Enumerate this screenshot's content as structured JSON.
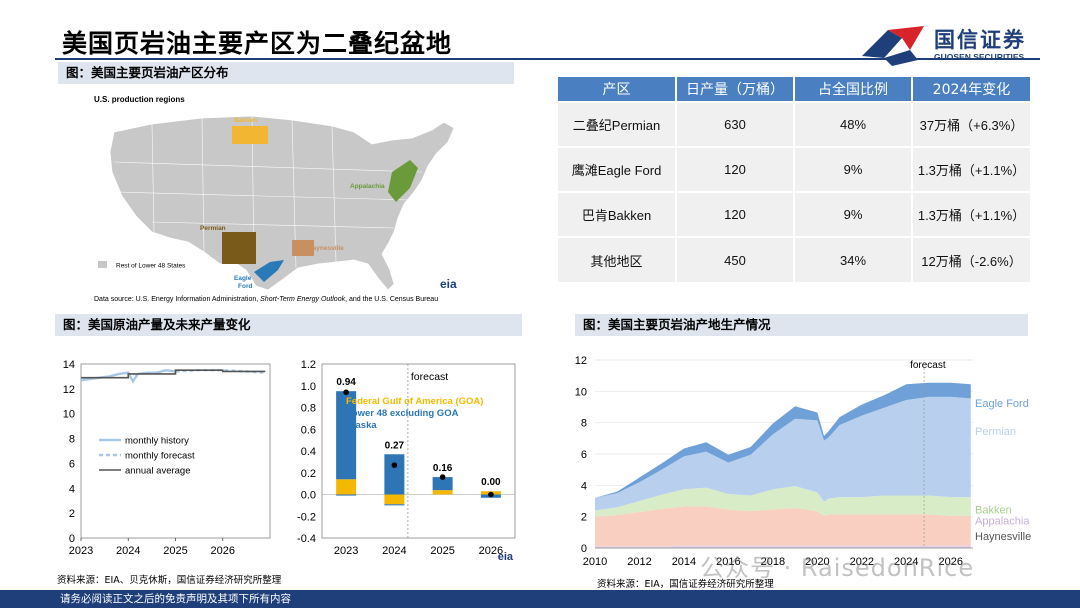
{
  "header": {
    "title": "美国页岩油主要产区为二叠纪盆地",
    "logo_name": "国信证券",
    "logo_en": "GUOSEN SECURITIES"
  },
  "sections": {
    "map_title": "图：美国主要页岩油产区分布",
    "production_title": "图：美国原油产量及未来产量变化",
    "regions_title": "图：美国主要页岩油产地生产情况"
  },
  "map": {
    "heading": "U.S. production regions",
    "regions": [
      "Bakken",
      "Appalachia",
      "Permian",
      "Haynesville",
      "Eagle",
      "Ford"
    ],
    "legend": "Rest of Lower 48 States",
    "source_prefix": "Data source: U.S. Energy Information Administration, ",
    "source_italic": "Short-Term Energy Outlook",
    "source_suffix": ", and the U.S. Census Bureau",
    "logo": "eia",
    "colors": {
      "Bakken": "#f2b632",
      "Appalachia": "#6a9a3a",
      "Permian": "#7a5a1a",
      "Haynesville": "#c89060",
      "EagleFord": "#2a7ab8",
      "states": "#c8c8c8"
    }
  },
  "table": {
    "headers": [
      "产区",
      "日产量（万桶）",
      "占全国比例",
      "2024年变化"
    ],
    "rows": [
      [
        "二叠纪Permian",
        "630",
        "48%",
        "37万桶（+6.3%）"
      ],
      [
        "鹰滩Eagle Ford",
        "120",
        "9%",
        "1.3万桶（+1.1%）"
      ],
      [
        "巴肯Bakken",
        "120",
        "9%",
        "1.3万桶（+1.1%）"
      ],
      [
        "其他地区",
        "450",
        "34%",
        "12万桶（-2.6%）"
      ]
    ]
  },
  "notes": {
    "left_source": "资料来源：EIA、贝克休斯，国信证券经济研究所整理",
    "right_source": "资料来源：EIA，国信证券经济研究所整理",
    "eia": "eia"
  },
  "footer": "请务必阅读正文之后的免责声明及其项下所有内容",
  "watermark": "公众号 · RaisedonRice",
  "chart_data": [
    {
      "type": "line",
      "x_ticks": [
        "2023",
        "2024",
        "2025",
        "2026"
      ],
      "ylim": [
        0,
        14
      ],
      "y_ticks": [
        0,
        2,
        4,
        6,
        8,
        10,
        12,
        14
      ],
      "series": [
        {
          "name": "monthly history",
          "x": [
            2023.0,
            2023.2,
            2023.4,
            2023.6,
            2023.8,
            2024.0,
            2024.1,
            2024.2,
            2024.4,
            2024.6,
            2024.8,
            2025.0
          ],
          "values": [
            12.7,
            12.8,
            12.9,
            13.0,
            13.2,
            13.3,
            12.6,
            13.2,
            13.3,
            13.3,
            13.5,
            13.4
          ],
          "color": "#a8c8e8"
        },
        {
          "name": "monthly forecast",
          "x": [
            2025.0,
            2025.5,
            2026.0,
            2026.5,
            2026.9
          ],
          "values": [
            13.4,
            13.5,
            13.5,
            13.4,
            13.3
          ],
          "color": "#a8c8e8"
        },
        {
          "name": "annual average",
          "x": [
            2023.0,
            2024.0,
            2024.0,
            2025.0,
            2025.0,
            2026.0,
            2026.0,
            2026.9
          ],
          "values": [
            12.9,
            12.9,
            13.2,
            13.2,
            13.5,
            13.5,
            13.4,
            13.4
          ],
          "color": "#555555"
        }
      ]
    },
    {
      "type": "bar",
      "categories": [
        "2023",
        "2024",
        "2025",
        "2026"
      ],
      "ylim": [
        -0.4,
        1.2
      ],
      "y_ticks": [
        -0.4,
        -0.2,
        0.0,
        0.2,
        0.4,
        0.6,
        0.8,
        1.0,
        1.2
      ],
      "annotation": "forecast",
      "totals": [
        0.94,
        0.27,
        0.16,
        0.0
      ],
      "total_labels": [
        "0.94",
        "0.27",
        "0.16",
        "0.00"
      ],
      "series": [
        {
          "name": "Federal Gulf of America (GOA)",
          "color": "#f5b800",
          "values": [
            0.14,
            -0.09,
            0.04,
            0.03
          ]
        },
        {
          "name": "Lower 48 excluding GOA",
          "color": "#2e75b6",
          "values": [
            0.81,
            0.37,
            0.12,
            -0.03
          ]
        },
        {
          "name": "Alaska",
          "color": "#2e75b6",
          "values": [
            -0.01,
            -0.01,
            0.0,
            0.0
          ]
        }
      ]
    },
    {
      "type": "area",
      "x_ticks": [
        "2010",
        "2012",
        "2014",
        "2016",
        "2018",
        "2020",
        "2022",
        "2024",
        "2026"
      ],
      "ylim": [
        0,
        12
      ],
      "y_ticks": [
        0,
        2,
        4,
        6,
        8,
        10,
        12
      ],
      "annotation": "forecast",
      "x": [
        2010,
        2011,
        2012,
        2013,
        2014,
        2015,
        2016,
        2017,
        2018,
        2019,
        2020,
        2020.3,
        2020.5,
        2021,
        2022,
        2023,
        2024,
        2025,
        2026,
        2026.9
      ],
      "series": [
        {
          "name": "Haynesville",
          "color": "#c0c0c0",
          "values": [
            0.05,
            0.05,
            0.05,
            0.05,
            0.05,
            0.05,
            0.05,
            0.05,
            0.05,
            0.05,
            0.05,
            0.05,
            0.05,
            0.05,
            0.05,
            0.05,
            0.05,
            0.05,
            0.05,
            0.05
          ]
        },
        {
          "name": "Appalachia",
          "color": "#e8d0f0",
          "values": [
            0.05,
            0.05,
            0.05,
            0.05,
            0.1,
            0.1,
            0.1,
            0.1,
            0.1,
            0.1,
            0.1,
            0.1,
            0.1,
            0.1,
            0.1,
            0.1,
            0.1,
            0.1,
            0.1,
            0.1
          ]
        },
        {
          "name": "",
          "color": "#f8cfc0",
          "values": [
            1.9,
            2.0,
            2.2,
            2.4,
            2.5,
            2.5,
            2.3,
            2.2,
            2.3,
            2.4,
            2.2,
            1.9,
            2.0,
            2.0,
            2.0,
            2.0,
            2.0,
            2.0,
            1.9,
            1.9
          ]
        },
        {
          "name": "Bakken",
          "color": "#d8ecc8",
          "values": [
            0.4,
            0.5,
            0.7,
            0.9,
            1.1,
            1.2,
            1.0,
            1.0,
            1.3,
            1.4,
            1.2,
            0.9,
            1.0,
            1.1,
            1.1,
            1.2,
            1.2,
            1.2,
            1.2,
            1.2
          ]
        },
        {
          "name": "Permian",
          "color": "#b8d0ee",
          "values": [
            0.8,
            0.9,
            1.2,
            1.6,
            2.1,
            2.3,
            2.0,
            2.6,
            3.5,
            4.3,
            4.6,
            3.9,
            3.9,
            4.6,
            5.2,
            5.6,
            6.1,
            6.3,
            6.4,
            6.3
          ]
        },
        {
          "name": "Eagle Ford",
          "color": "#6fa0d8",
          "values": [
            0.0,
            0.1,
            0.3,
            0.4,
            0.5,
            0.6,
            0.5,
            0.5,
            0.7,
            0.8,
            0.5,
            0.3,
            0.4,
            0.5,
            0.7,
            0.8,
            1.0,
            0.9,
            0.9,
            0.9
          ]
        }
      ]
    }
  ]
}
